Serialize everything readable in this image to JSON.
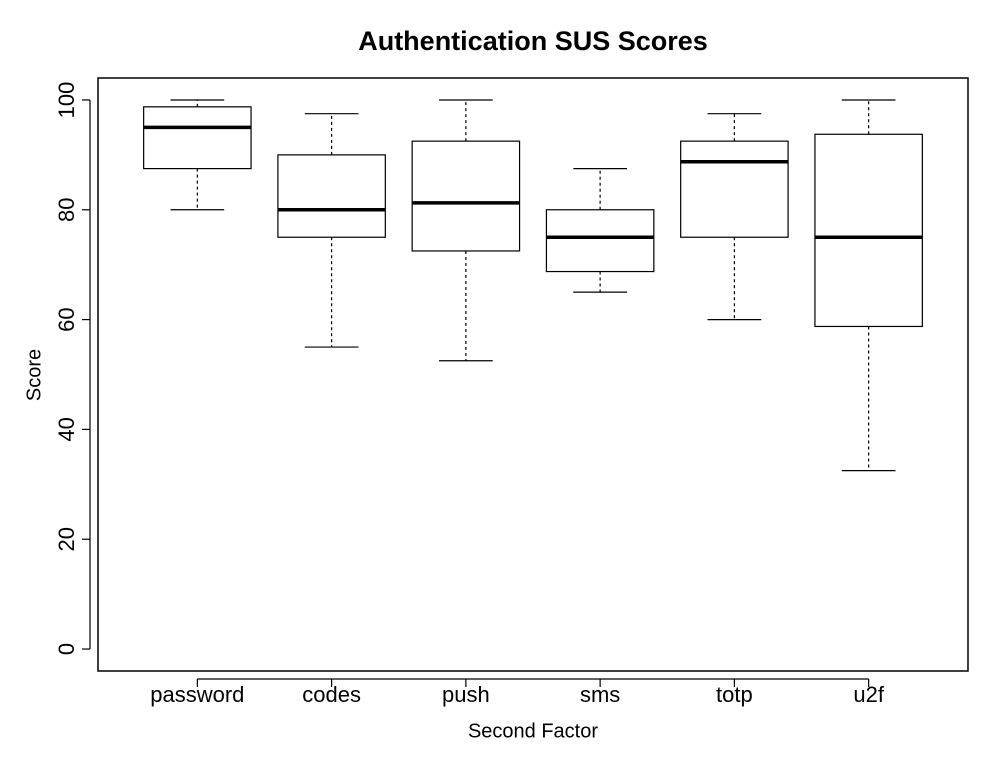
{
  "chart_data": {
    "type": "box",
    "title": "Authentication SUS Scores",
    "xlabel": "Second Factor",
    "ylabel": "Score",
    "categories": [
      "password",
      "codes",
      "push",
      "sms",
      "totp",
      "u2f"
    ],
    "min": [
      80,
      55,
      52.5,
      65,
      60,
      32.5
    ],
    "q1": [
      87.5,
      75,
      72.5,
      68.75,
      75,
      58.75
    ],
    "median": [
      95,
      80,
      81.25,
      75,
      88.75,
      75
    ],
    "q3": [
      98.75,
      90,
      92.5,
      80,
      92.5,
      93.75
    ],
    "max": [
      100,
      97.5,
      100,
      87.5,
      97.5,
      100
    ],
    "color": "#ffffff",
    "ylim": [
      -4,
      104
    ],
    "yticks": [
      0,
      20,
      40,
      60,
      80,
      100
    ]
  }
}
